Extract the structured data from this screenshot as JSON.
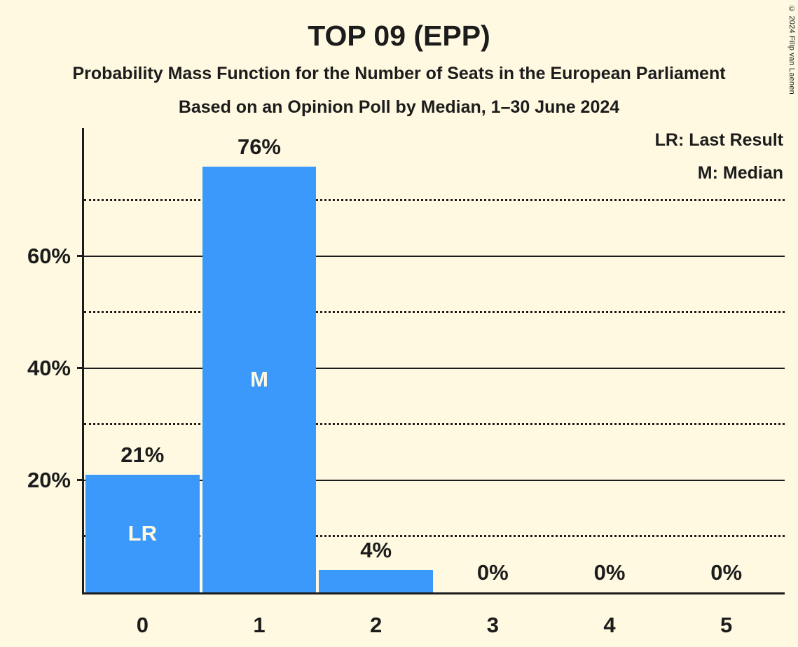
{
  "page": {
    "copyright": "© 2024 Filip van Laenen",
    "colors": {
      "background": "#FFF9E1",
      "text": "#1C1C1C",
      "bar": "#3A99FA",
      "inner_label_text": "#FFF9E1"
    }
  },
  "chart_data": {
    "type": "bar",
    "title": "TOP 09 (EPP)",
    "subtitle1": "Probability Mass Function for the Number of Seats in the European Parliament",
    "subtitle2": "Based on an Opinion Poll by Median, 1–30 June 2024",
    "xlabel": "",
    "ylabel": "",
    "categories": [
      "0",
      "1",
      "2",
      "3",
      "4",
      "5"
    ],
    "values": [
      21,
      76,
      4,
      0,
      0,
      0
    ],
    "bar_labels": [
      "21%",
      "76%",
      "4%",
      "0%",
      "0%",
      "0%"
    ],
    "inner_bar_labels": [
      "LR",
      "M",
      "",
      "",
      "",
      ""
    ],
    "legend": [
      "LR: Last Result",
      "M: Median"
    ],
    "legend_position": "top-right",
    "y_ticks": [
      {
        "value": 20,
        "label": "20%"
      },
      {
        "value": 40,
        "label": "40%"
      },
      {
        "value": 60,
        "label": "60%"
      }
    ],
    "solid_gridlines": [
      20,
      40,
      60
    ],
    "dotted_gridlines": [
      10,
      30,
      50,
      70
    ],
    "ylim": [
      0,
      83
    ],
    "grid": true,
    "annotations": {
      "last_result_bar_category": "0",
      "median_bar_category": "1"
    }
  }
}
